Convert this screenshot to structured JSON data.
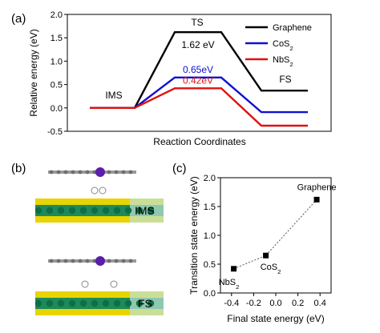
{
  "chart_data": [
    {
      "type": "line",
      "panel_label": "(a)",
      "xlabel": "Reaction Coordinates",
      "ylabel": "Relative energy (eV)",
      "ylim": [
        -0.5,
        2.0
      ],
      "yticks": [
        "-0.5",
        "0.0",
        "0.5",
        "1.0",
        "1.5",
        "2.0"
      ],
      "states": [
        "IMS",
        "TS",
        "FS"
      ],
      "series": [
        {
          "name": "Graphene",
          "values": [
            0.0,
            1.62,
            0.37
          ],
          "color": "#000000",
          "barrier_label": "1.62 eV"
        },
        {
          "name": "CoS2",
          "values": [
            0.0,
            0.65,
            -0.09
          ],
          "color": "#1010d0",
          "barrier_label": "0.65eV"
        },
        {
          "name": "NbS2",
          "values": [
            0.0,
            0.42,
            -0.38
          ],
          "color": "#e01010",
          "barrier_label": "0.42eV"
        }
      ],
      "legend_position": "top-right"
    },
    {
      "type": "scatter",
      "panel_label": "(c)",
      "xlabel": "Final state energy (eV)",
      "ylabel": "Transition state energy (eV)",
      "xlim": [
        -0.5,
        0.5
      ],
      "ylim": [
        0.0,
        2.0
      ],
      "xticks": [
        "-0.4",
        "-0.2",
        "0.0",
        "0.2",
        "0.4"
      ],
      "yticks": [
        "0.0",
        "0.5",
        "1.0",
        "1.5",
        "2.0"
      ],
      "points": [
        {
          "label": "NbS2",
          "x": -0.38,
          "y": 0.42
        },
        {
          "label": "CoS2",
          "x": -0.09,
          "y": 0.65
        },
        {
          "label": "Graphene",
          "x": 0.37,
          "y": 1.62
        }
      ],
      "trend_line": "dotted"
    }
  ],
  "panel_b": {
    "panel_label": "(b)",
    "top_state": "IMS",
    "bottom_state": "FS"
  }
}
